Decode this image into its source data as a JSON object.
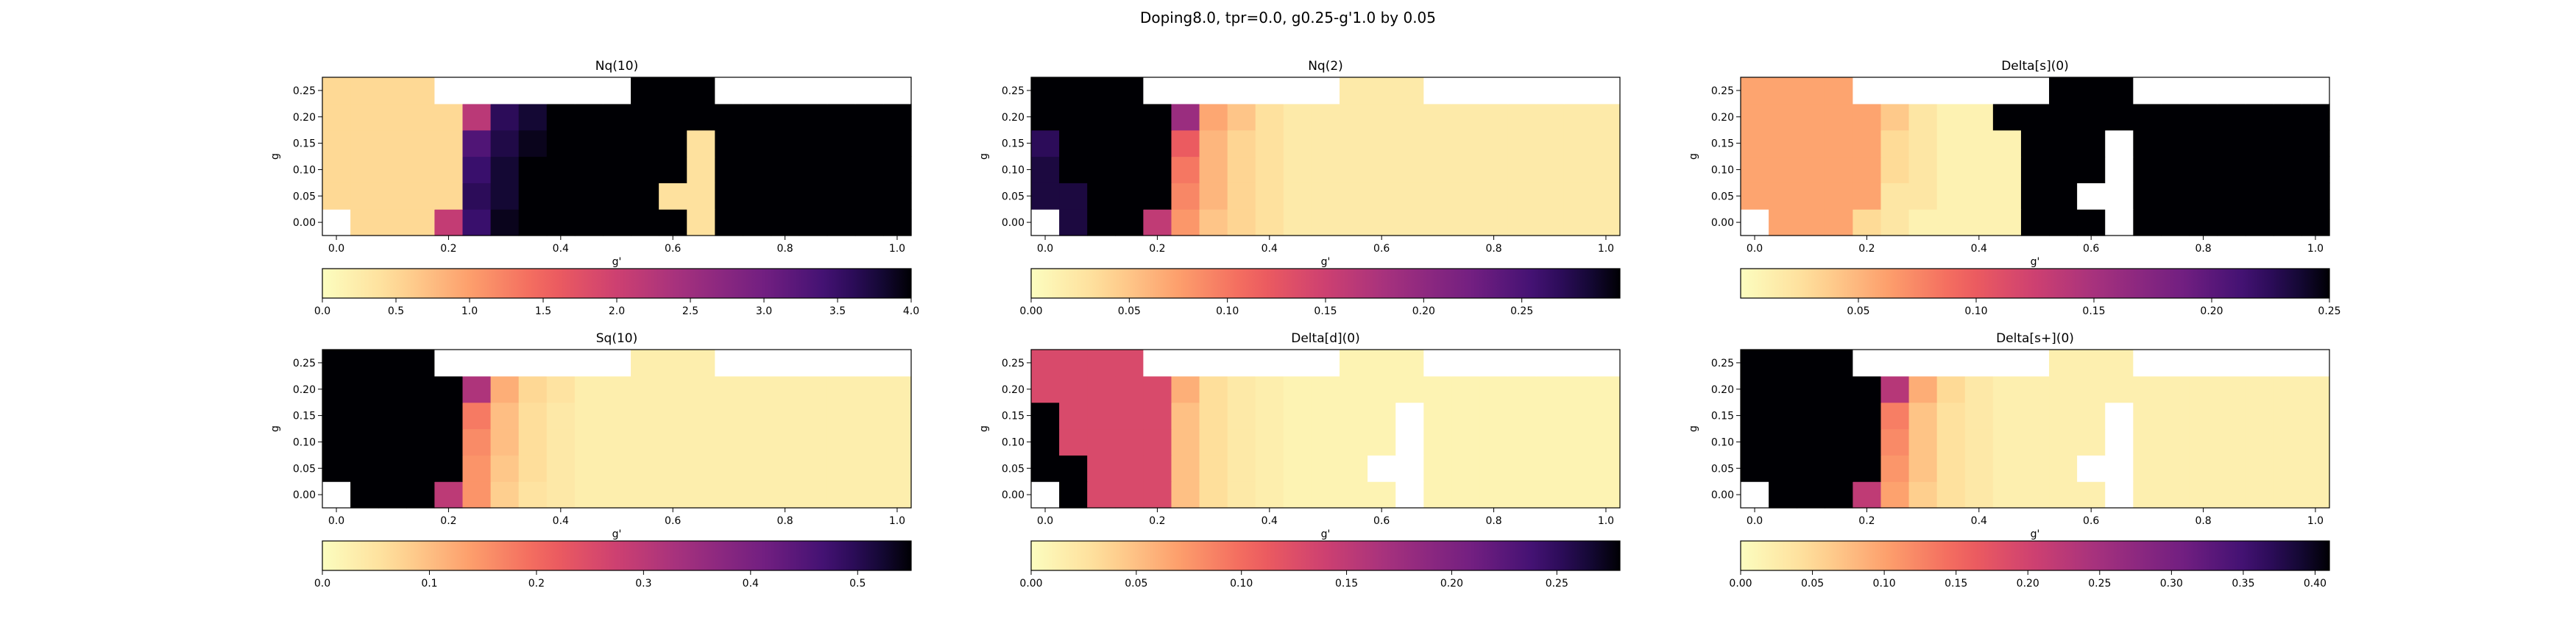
{
  "figure": {
    "suptitle": "Doping8.0, tpr=0.0, g0.25-g'1.0 by 0.05"
  },
  "chart_data": [
    {
      "type": "heatmap",
      "title": "Nq(10)",
      "xlabel": "g'",
      "ylabel": "g",
      "x_ticks": [
        "0.0",
        "0.2",
        "0.4",
        "0.6",
        "0.8",
        "1.0"
      ],
      "y_ticks": [
        "0.00",
        "0.05",
        "0.10",
        "0.15",
        "0.20",
        "0.25"
      ],
      "colorbar": {
        "vmin": 0,
        "vmax": 4,
        "ticks": [
          "0.0",
          "0.5",
          "1.0",
          "1.5",
          "2.0",
          "2.5",
          "3.0",
          "3.5",
          "4.0"
        ],
        "colormap": "magma_r"
      },
      "x": [
        0.0,
        0.05,
        0.1,
        0.15,
        0.2,
        0.25,
        0.3,
        0.35,
        0.4,
        0.45,
        0.5,
        0.55,
        0.6,
        0.65,
        0.7,
        0.75,
        0.8,
        0.85,
        0.9,
        0.95,
        1.0
      ],
      "y": [
        0.0,
        0.05,
        0.1,
        0.15,
        0.2,
        0.25
      ],
      "z": [
        [
          null,
          0.5,
          0.5,
          0.5,
          2.1,
          3.5,
          3.9,
          4.0,
          4.0,
          4.0,
          4.0,
          4.0,
          4.0,
          0.4,
          4.0,
          4.0,
          4.0,
          4.0,
          4.0,
          4.0,
          4.0
        ],
        [
          0.5,
          0.5,
          0.5,
          0.5,
          0.5,
          3.6,
          3.8,
          4.0,
          4.0,
          4.0,
          4.0,
          4.0,
          0.4,
          0.4,
          4.0,
          4.0,
          4.0,
          4.0,
          4.0,
          4.0,
          4.0
        ],
        [
          0.5,
          0.5,
          0.5,
          0.5,
          0.5,
          3.5,
          3.8,
          4.0,
          4.0,
          4.0,
          4.0,
          4.0,
          4.0,
          0.4,
          4.0,
          4.0,
          4.0,
          4.0,
          4.0,
          4.0,
          4.0
        ],
        [
          0.5,
          0.5,
          0.5,
          0.5,
          0.5,
          3.3,
          3.7,
          3.9,
          4.0,
          4.0,
          4.0,
          4.0,
          4.0,
          0.4,
          4.0,
          4.0,
          4.0,
          4.0,
          4.0,
          4.0,
          4.0
        ],
        [
          0.5,
          0.5,
          0.5,
          0.5,
          0.5,
          2.2,
          3.6,
          3.8,
          4.0,
          4.0,
          4.0,
          4.0,
          4.0,
          4.0,
          4.0,
          4.0,
          4.0,
          4.0,
          4.0,
          4.0,
          4.0
        ],
        [
          0.5,
          0.5,
          0.5,
          0.5,
          null,
          null,
          null,
          null,
          null,
          null,
          null,
          4.0,
          4.0,
          4.0,
          null,
          null,
          null,
          null,
          null,
          null,
          null
        ]
      ]
    },
    {
      "type": "heatmap",
      "title": "Nq(2)",
      "xlabel": "g'",
      "ylabel": "g",
      "x_ticks": [
        "0.0",
        "0.2",
        "0.4",
        "0.6",
        "0.8",
        "1.0"
      ],
      "y_ticks": [
        "0.00",
        "0.05",
        "0.10",
        "0.15",
        "0.20",
        "0.25"
      ],
      "colorbar": {
        "vmin": 0,
        "vmax": 0.3,
        "ticks": [
          "0.00",
          "0.05",
          "0.10",
          "0.15",
          "0.20",
          "0.25"
        ],
        "colormap": "magma_r"
      },
      "x": [
        0.0,
        0.05,
        0.1,
        0.15,
        0.2,
        0.25,
        0.3,
        0.35,
        0.4,
        0.45,
        0.5,
        0.55,
        0.6,
        0.65,
        0.7,
        0.75,
        0.8,
        0.85,
        0.9,
        0.95,
        1.0
      ],
      "y": [
        0.0,
        0.05,
        0.1,
        0.15,
        0.2,
        0.25
      ],
      "z": [
        [
          null,
          0.28,
          0.3,
          0.3,
          0.16,
          0.08,
          0.05,
          0.04,
          0.03,
          0.02,
          0.02,
          0.02,
          0.02,
          0.02,
          0.02,
          0.02,
          0.02,
          0.02,
          0.02,
          0.02,
          0.02
        ],
        [
          0.28,
          0.28,
          0.3,
          0.3,
          0.3,
          0.09,
          0.06,
          0.04,
          0.03,
          0.02,
          0.02,
          0.02,
          0.02,
          0.02,
          0.02,
          0.02,
          0.02,
          0.02,
          0.02,
          0.02,
          0.02
        ],
        [
          0.28,
          0.3,
          0.3,
          0.3,
          0.3,
          0.1,
          0.06,
          0.04,
          0.03,
          0.02,
          0.02,
          0.02,
          0.02,
          0.02,
          0.02,
          0.02,
          0.02,
          0.02,
          0.02,
          0.02,
          0.02
        ],
        [
          0.27,
          0.3,
          0.3,
          0.3,
          0.3,
          0.12,
          0.06,
          0.04,
          0.03,
          0.02,
          0.02,
          0.02,
          0.02,
          0.02,
          0.02,
          0.02,
          0.02,
          0.02,
          0.02,
          0.02,
          0.02
        ],
        [
          0.3,
          0.3,
          0.3,
          0.3,
          0.3,
          0.19,
          0.07,
          0.05,
          0.03,
          0.02,
          0.02,
          0.02,
          0.02,
          0.02,
          0.02,
          0.02,
          0.02,
          0.02,
          0.02,
          0.02,
          0.02
        ],
        [
          0.3,
          0.3,
          0.3,
          0.3,
          null,
          null,
          null,
          null,
          null,
          null,
          null,
          0.02,
          0.02,
          0.02,
          null,
          null,
          null,
          null,
          null,
          null,
          null
        ]
      ]
    },
    {
      "type": "heatmap",
      "title": "Delta[s](0)",
      "xlabel": "g'",
      "ylabel": "g",
      "x_ticks": [
        "0.0",
        "0.2",
        "0.4",
        "0.6",
        "0.8",
        "1.0"
      ],
      "y_ticks": [
        "0.00",
        "0.05",
        "0.10",
        "0.15",
        "0.20",
        "0.25"
      ],
      "colorbar": {
        "vmin": 0,
        "vmax": 0.25,
        "ticks": [
          "0.05",
          "0.10",
          "0.15",
          "0.20",
          "0.25"
        ],
        "colormap": "magma_r"
      },
      "x": [
        0.0,
        0.05,
        0.1,
        0.15,
        0.2,
        0.25,
        0.3,
        0.35,
        0.4,
        0.45,
        0.5,
        0.55,
        0.6,
        0.65,
        0.7,
        0.75,
        0.8,
        0.85,
        0.9,
        0.95,
        1.0
      ],
      "y": [
        0.0,
        0.05,
        0.1,
        0.15,
        0.2,
        0.25
      ],
      "z": [
        [
          null,
          0.06,
          0.06,
          0.06,
          0.03,
          0.02,
          0.01,
          0.01,
          0.01,
          0.01,
          0.25,
          0.25,
          0.25,
          null,
          0.25,
          0.25,
          0.25,
          0.25,
          0.25,
          0.25,
          0.25
        ],
        [
          0.06,
          0.06,
          0.06,
          0.06,
          0.06,
          0.02,
          0.02,
          0.01,
          0.01,
          0.01,
          0.25,
          0.25,
          null,
          null,
          0.25,
          0.25,
          0.25,
          0.25,
          0.25,
          0.25,
          0.25
        ],
        [
          0.06,
          0.06,
          0.06,
          0.06,
          0.06,
          0.03,
          0.02,
          0.01,
          0.01,
          0.01,
          0.25,
          0.25,
          0.25,
          null,
          0.25,
          0.25,
          0.25,
          0.25,
          0.25,
          0.25,
          0.25
        ],
        [
          0.06,
          0.06,
          0.06,
          0.06,
          0.06,
          0.03,
          0.02,
          0.01,
          0.01,
          0.01,
          0.25,
          0.25,
          0.25,
          null,
          0.25,
          0.25,
          0.25,
          0.25,
          0.25,
          0.25,
          0.25
        ],
        [
          0.06,
          0.06,
          0.06,
          0.06,
          0.06,
          0.04,
          0.02,
          0.01,
          0.01,
          0.25,
          0.25,
          0.25,
          0.25,
          0.25,
          0.25,
          0.25,
          0.25,
          0.25,
          0.25,
          0.25,
          0.25
        ],
        [
          0.06,
          0.06,
          0.06,
          0.06,
          null,
          null,
          null,
          null,
          null,
          null,
          null,
          0.25,
          0.25,
          0.25,
          null,
          null,
          null,
          null,
          null,
          null,
          null
        ]
      ]
    },
    {
      "type": "heatmap",
      "title": "Sq(10)",
      "xlabel": "g'",
      "ylabel": "g",
      "x_ticks": [
        "0.0",
        "0.2",
        "0.4",
        "0.6",
        "0.8",
        "1.0"
      ],
      "y_ticks": [
        "0.00",
        "0.05",
        "0.10",
        "0.15",
        "0.20",
        "0.25"
      ],
      "colorbar": {
        "vmin": 0,
        "vmax": 0.55,
        "ticks": [
          "0.0",
          "0.1",
          "0.2",
          "0.3",
          "0.4",
          "0.5"
        ],
        "colormap": "magma_r"
      },
      "x": [
        0.0,
        0.05,
        0.1,
        0.15,
        0.2,
        0.25,
        0.3,
        0.35,
        0.4,
        0.45,
        0.5,
        0.55,
        0.6,
        0.65,
        0.7,
        0.75,
        0.8,
        0.85,
        0.9,
        0.95,
        1.0
      ],
      "y": [
        0.0,
        0.05,
        0.1,
        0.15,
        0.2,
        0.25
      ],
      "z": [
        [
          null,
          0.55,
          0.55,
          0.55,
          0.3,
          0.15,
          0.08,
          0.05,
          0.04,
          0.03,
          0.03,
          0.03,
          0.03,
          0.03,
          0.03,
          0.03,
          0.03,
          0.03,
          0.03,
          0.03,
          0.03
        ],
        [
          0.55,
          0.55,
          0.55,
          0.55,
          0.55,
          0.15,
          0.09,
          0.06,
          0.04,
          0.03,
          0.03,
          0.03,
          0.03,
          0.03,
          0.03,
          0.03,
          0.03,
          0.03,
          0.03,
          0.03,
          0.03
        ],
        [
          0.55,
          0.55,
          0.55,
          0.55,
          0.55,
          0.16,
          0.1,
          0.06,
          0.04,
          0.03,
          0.03,
          0.03,
          0.03,
          0.03,
          0.03,
          0.03,
          0.03,
          0.03,
          0.03,
          0.03,
          0.03
        ],
        [
          0.55,
          0.55,
          0.55,
          0.55,
          0.55,
          0.18,
          0.1,
          0.06,
          0.04,
          0.03,
          0.03,
          0.03,
          0.03,
          0.03,
          0.03,
          0.03,
          0.03,
          0.03,
          0.03,
          0.03,
          0.03
        ],
        [
          0.55,
          0.55,
          0.55,
          0.55,
          0.55,
          0.32,
          0.12,
          0.07,
          0.05,
          0.03,
          0.03,
          0.03,
          0.03,
          0.03,
          0.03,
          0.03,
          0.03,
          0.03,
          0.03,
          0.03,
          0.03
        ],
        [
          0.55,
          0.55,
          0.55,
          0.55,
          null,
          null,
          null,
          null,
          null,
          null,
          null,
          0.03,
          0.03,
          0.03,
          null,
          null,
          null,
          null,
          null,
          null,
          null
        ]
      ]
    },
    {
      "type": "heatmap",
      "title": "Delta[d](0)",
      "xlabel": "g'",
      "ylabel": "g",
      "x_ticks": [
        "0.0",
        "0.2",
        "0.4",
        "0.6",
        "0.8",
        "1.0"
      ],
      "y_ticks": [
        "0.00",
        "0.05",
        "0.10",
        "0.15",
        "0.20",
        "0.25"
      ],
      "colorbar": {
        "vmin": 0,
        "vmax": 0.28,
        "ticks": [
          "0.00",
          "0.05",
          "0.10",
          "0.15",
          "0.20",
          "0.25"
        ],
        "colormap": "magma_r"
      },
      "x": [
        0.0,
        0.05,
        0.1,
        0.15,
        0.2,
        0.25,
        0.3,
        0.35,
        0.4,
        0.45,
        0.5,
        0.55,
        0.6,
        0.65,
        0.7,
        0.75,
        0.8,
        0.85,
        0.9,
        0.95,
        1.0
      ],
      "y": [
        0.0,
        0.05,
        0.1,
        0.15,
        0.2,
        0.25
      ],
      "z": [
        [
          null,
          0.28,
          0.13,
          0.13,
          0.13,
          0.05,
          0.03,
          0.02,
          0.015,
          0.01,
          0.01,
          0.01,
          0.01,
          null,
          0.01,
          0.01,
          0.01,
          0.01,
          0.01,
          0.01,
          0.01
        ],
        [
          0.28,
          0.28,
          0.13,
          0.13,
          0.13,
          0.05,
          0.03,
          0.02,
          0.015,
          0.01,
          0.01,
          0.01,
          null,
          null,
          0.01,
          0.01,
          0.01,
          0.01,
          0.01,
          0.01,
          0.01
        ],
        [
          0.28,
          0.13,
          0.13,
          0.13,
          0.13,
          0.05,
          0.03,
          0.02,
          0.015,
          0.01,
          0.01,
          0.01,
          0.01,
          null,
          0.01,
          0.01,
          0.01,
          0.01,
          0.01,
          0.01,
          0.01
        ],
        [
          0.28,
          0.13,
          0.13,
          0.13,
          0.13,
          0.05,
          0.03,
          0.02,
          0.015,
          0.01,
          0.01,
          0.01,
          0.01,
          null,
          0.01,
          0.01,
          0.01,
          0.01,
          0.01,
          0.01,
          0.01
        ],
        [
          0.13,
          0.13,
          0.13,
          0.13,
          0.13,
          0.06,
          0.03,
          0.02,
          0.015,
          0.01,
          0.01,
          0.01,
          0.01,
          0.01,
          0.01,
          0.01,
          0.01,
          0.01,
          0.01,
          0.01,
          0.01
        ],
        [
          0.13,
          0.13,
          0.13,
          0.13,
          null,
          null,
          null,
          null,
          null,
          null,
          null,
          0.01,
          0.01,
          0.01,
          null,
          null,
          null,
          null,
          null,
          null,
          null
        ]
      ]
    },
    {
      "type": "heatmap",
      "title": "Delta[s+](0)",
      "xlabel": "g'",
      "ylabel": "g",
      "x_ticks": [
        "0.0",
        "0.2",
        "0.4",
        "0.6",
        "0.8",
        "1.0"
      ],
      "y_ticks": [
        "0.00",
        "0.05",
        "0.10",
        "0.15",
        "0.20",
        "0.25"
      ],
      "colorbar": {
        "vmin": 0,
        "vmax": 0.41,
        "ticks": [
          "0.00",
          "0.05",
          "0.10",
          "0.15",
          "0.20",
          "0.25",
          "0.30",
          "0.35",
          "0.40"
        ],
        "colormap": "magma_r"
      },
      "x": [
        0.0,
        0.05,
        0.1,
        0.15,
        0.2,
        0.25,
        0.3,
        0.35,
        0.4,
        0.45,
        0.5,
        0.55,
        0.6,
        0.65,
        0.7,
        0.75,
        0.8,
        0.85,
        0.9,
        0.95,
        1.0
      ],
      "y": [
        0.0,
        0.05,
        0.1,
        0.15,
        0.2,
        0.25
      ],
      "z": [
        [
          null,
          0.41,
          0.41,
          0.41,
          0.22,
          0.1,
          0.06,
          0.04,
          0.03,
          0.02,
          0.02,
          0.02,
          0.02,
          null,
          0.02,
          0.02,
          0.02,
          0.02,
          0.02,
          0.02,
          0.02
        ],
        [
          0.41,
          0.41,
          0.41,
          0.41,
          0.41,
          0.11,
          0.07,
          0.04,
          0.03,
          0.02,
          0.02,
          0.02,
          null,
          null,
          0.02,
          0.02,
          0.02,
          0.02,
          0.02,
          0.02,
          0.02
        ],
        [
          0.41,
          0.41,
          0.41,
          0.41,
          0.41,
          0.12,
          0.07,
          0.04,
          0.03,
          0.02,
          0.02,
          0.02,
          0.02,
          null,
          0.02,
          0.02,
          0.02,
          0.02,
          0.02,
          0.02,
          0.02
        ],
        [
          0.41,
          0.41,
          0.41,
          0.41,
          0.41,
          0.13,
          0.07,
          0.04,
          0.03,
          0.02,
          0.02,
          0.02,
          0.02,
          null,
          0.02,
          0.02,
          0.02,
          0.02,
          0.02,
          0.02,
          0.02
        ],
        [
          0.41,
          0.41,
          0.41,
          0.41,
          0.41,
          0.23,
          0.09,
          0.05,
          0.03,
          0.02,
          0.02,
          0.02,
          0.02,
          0.02,
          0.02,
          0.02,
          0.02,
          0.02,
          0.02,
          0.02,
          0.02
        ],
        [
          0.41,
          0.41,
          0.41,
          0.41,
          null,
          null,
          null,
          null,
          null,
          null,
          null,
          0.02,
          0.02,
          0.02,
          null,
          null,
          null,
          null,
          null,
          null,
          null
        ]
      ]
    }
  ]
}
